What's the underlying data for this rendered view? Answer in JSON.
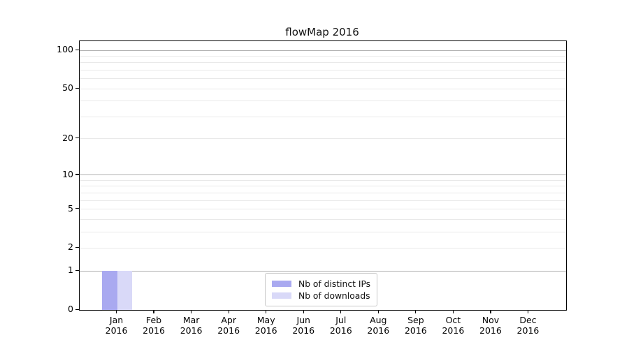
{
  "chart_data": {
    "type": "bar",
    "title": "flowMap 2016",
    "categories": [
      "Jan",
      "Feb",
      "Mar",
      "Apr",
      "May",
      "Jun",
      "Jul",
      "Aug",
      "Sep",
      "Oct",
      "Nov",
      "Dec"
    ],
    "category_year": "2016",
    "series": [
      {
        "name": "Nb of distinct IPs",
        "color": "#a9a9f0",
        "values": [
          1,
          0,
          0,
          0,
          0,
          0,
          0,
          0,
          0,
          0,
          0,
          0
        ]
      },
      {
        "name": "Nb of downloads",
        "color": "#d9d9f8",
        "values": [
          1,
          0,
          0,
          0,
          0,
          0,
          0,
          0,
          0,
          0,
          0,
          0
        ]
      }
    ],
    "xlabel": "",
    "ylabel": "",
    "y_axis": {
      "scale": "log1p",
      "ticks": [
        0,
        1,
        2,
        5,
        10,
        20,
        50,
        100
      ],
      "max": 118,
      "major_gridlines": [
        1,
        10,
        100
      ],
      "minor_gridlines": [
        2,
        3,
        4,
        5,
        6,
        7,
        8,
        9,
        20,
        30,
        40,
        50,
        60,
        70,
        80,
        90
      ]
    },
    "legend": {
      "position": "lower center"
    },
    "grid": true,
    "colors": {
      "major_grid": "#b0b0b0",
      "minor_grid": "#e9e9e9",
      "axis": "#000000",
      "background": "#ffffff"
    }
  }
}
